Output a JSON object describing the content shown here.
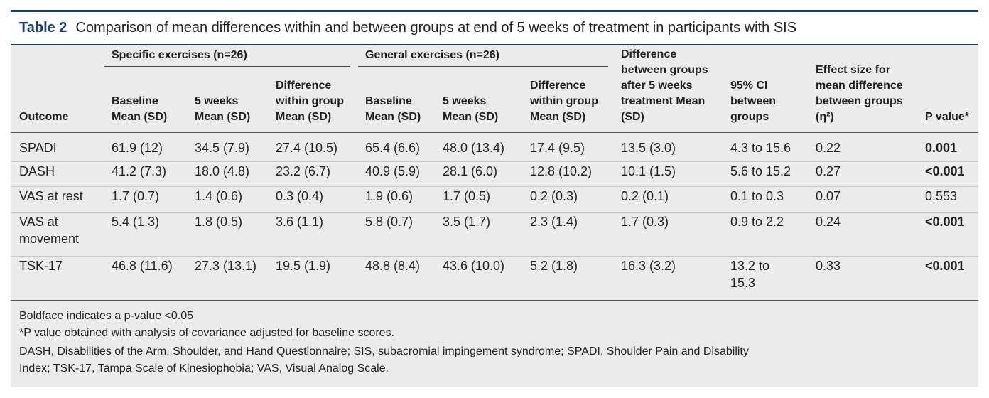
{
  "title": {
    "label": "Table 2",
    "text": "Comparison of mean differences within and between groups at end of 5 weeks of treatment in participants with SIS"
  },
  "groups": {
    "specific": "Specific exercises (n=26)",
    "general": "General exercises (n=26)"
  },
  "headers": {
    "outcome": "Outcome",
    "s_baseline": [
      "Baseline",
      "Mean (SD)"
    ],
    "s_5weeks": [
      "5 weeks",
      "Mean (SD)"
    ],
    "s_diff": [
      "Difference",
      "within group",
      "Mean (SD)"
    ],
    "g_baseline": [
      "Baseline",
      "Mean (SD)"
    ],
    "g_5weeks": [
      "5 weeks",
      "Mean (SD)"
    ],
    "g_diff": [
      "Difference",
      "within group",
      "Mean (SD)"
    ],
    "between": [
      "Difference",
      "between groups",
      "after 5 weeks",
      "treatment Mean",
      "(SD)"
    ],
    "ci": [
      "95% CI",
      "between",
      "groups"
    ],
    "effect": [
      "Effect size for",
      "mean difference",
      "between groups",
      "(η²)"
    ],
    "pvalue": "P value*"
  },
  "rows": [
    {
      "outcome": [
        "SPADI"
      ],
      "s_baseline": "61.9 (12)",
      "s_5weeks": "34.5 (7.9)",
      "s_diff": "27.4 (10.5)",
      "g_baseline": "65.4 (6.6)",
      "g_5weeks": "48.0 (13.4)",
      "g_diff": "17.4 (9.5)",
      "between": "13.5 (3.0)",
      "ci": [
        "4.3 to 15.6"
      ],
      "effect": "0.22",
      "pvalue": "0.001",
      "p_bold": true
    },
    {
      "outcome": [
        "DASH"
      ],
      "s_baseline": "41.2 (7.3)",
      "s_5weeks": "18.0 (4.8)",
      "s_diff": "23.2 (6.7)",
      "g_baseline": "40.9 (5.9)",
      "g_5weeks": "28.1 (6.0)",
      "g_diff": "12.8 (10.2)",
      "between": "10.1 (1.5)",
      "ci": [
        "5.6 to 15.2"
      ],
      "effect": "0.27",
      "pvalue": "<0.001",
      "p_bold": true
    },
    {
      "outcome": [
        "VAS at rest"
      ],
      "s_baseline": "1.7 (0.7)",
      "s_5weeks": "1.4 (0.6)",
      "s_diff": "0.3 (0.4)",
      "g_baseline": "1.9 (0.6)",
      "g_5weeks": "1.7 (0.5)",
      "g_diff": "0.2 (0.3)",
      "between": "0.2 (0.1)",
      "ci": [
        "0.1 to 0.3"
      ],
      "effect": "0.07",
      "pvalue": "0.553",
      "p_bold": false
    },
    {
      "outcome": [
        "VAS at",
        "movement"
      ],
      "s_baseline": "5.4 (1.3)",
      "s_5weeks": "1.8 (0.5)",
      "s_diff": "3.6 (1.1)",
      "g_baseline": "5.8 (0.7)",
      "g_5weeks": "3.5 (1.7)",
      "g_diff": "2.3 (1.4)",
      "between": "1.7 (0.3)",
      "ci": [
        "0.9 to 2.2"
      ],
      "effect": "0.24",
      "pvalue": "<0.001",
      "p_bold": true
    },
    {
      "outcome": [
        "TSK-17"
      ],
      "s_baseline": "46.8 (11.6)",
      "s_5weeks": "27.3 (13.1)",
      "s_diff": "19.5 (1.9)",
      "g_baseline": "48.8 (8.4)",
      "g_5weeks": "43.6 (10.0)",
      "g_diff": "5.2 (1.8)",
      "between": "16.3 (3.2)",
      "ci": [
        "13.2 to",
        "15.3"
      ],
      "effect": "0.33",
      "pvalue": "<0.001",
      "p_bold": true
    }
  ],
  "footnotes": [
    "Boldface indicates a p-value <0.05",
    "*P value obtained with analysis of covariance adjusted for baseline scores.",
    "DASH, Disabilities of the Arm, Shoulder, and Hand Questionnaire; SIS, subacromial impingement syndrome; SPADI, Shoulder Pain and Disability",
    "Index; TSK-17, Tampa Scale of Kinesiophobia; VAS, Visual Analog Scale."
  ],
  "colors": {
    "accent": "#1c3f6e",
    "panel": "#ebebeb"
  }
}
